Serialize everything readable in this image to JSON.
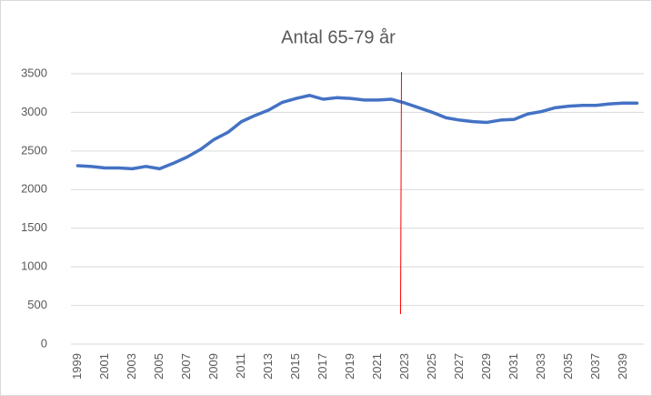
{
  "chart_data": {
    "type": "line",
    "title": "Antal 65-79 år",
    "categories": [
      "1999",
      null,
      "2001",
      null,
      "2003",
      null,
      "2005",
      null,
      "2007",
      null,
      "2009",
      null,
      "2011",
      null,
      "2013",
      null,
      "2015",
      null,
      "2017",
      null,
      "2019",
      null,
      "2021",
      null,
      "2023",
      null,
      "2025",
      null,
      "2027",
      null,
      "2029",
      null,
      "2031",
      null,
      "2033",
      null,
      "2035",
      null,
      "2037",
      null,
      "2039",
      null
    ],
    "series": [
      {
        "name": "Antal 65-79 år",
        "color": "#4472c4",
        "values": [
          2310,
          2300,
          2280,
          2280,
          2270,
          2300,
          2270,
          2340,
          2420,
          2520,
          2650,
          2740,
          2880,
          2960,
          3030,
          3130,
          3180,
          3220,
          3170,
          3190,
          3180,
          3160,
          3160,
          3170,
          3120,
          3060,
          3000,
          2930,
          2900,
          2880,
          2870,
          2900,
          2910,
          2980,
          3010,
          3060,
          3080,
          3090,
          3090,
          3110,
          3120,
          3120
        ]
      }
    ],
    "ylim": [
      0,
      3500
    ],
    "yticks": [
      0,
      500,
      1000,
      1500,
      2000,
      2500,
      3000,
      3500
    ],
    "grid": true,
    "vline": {
      "category": "2023",
      "color": "#ff0000"
    }
  }
}
